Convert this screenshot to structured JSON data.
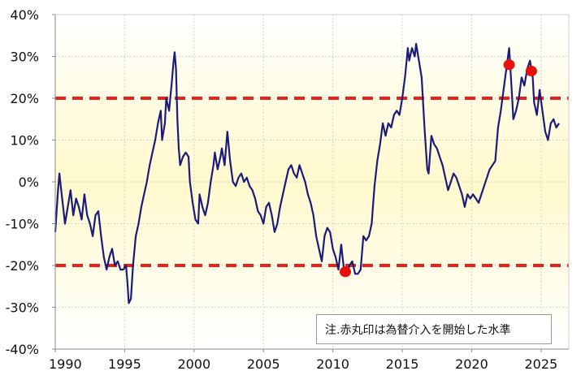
{
  "chart_data": {
    "type": "line",
    "title": "",
    "xlabel": "",
    "ylabel": "",
    "xlim": [
      1990,
      2027
    ],
    "ylim": [
      -40,
      40
    ],
    "x_ticks": [
      1990,
      1995,
      2000,
      2005,
      2010,
      2015,
      2020,
      2025
    ],
    "x_tick_labels": [
      "1990",
      "1995",
      "2000",
      "2005",
      "2010",
      "2015",
      "2020",
      "2025"
    ],
    "y_ticks": [
      40,
      30,
      20,
      10,
      0,
      -10,
      -20,
      -30,
      -40
    ],
    "y_tick_labels": [
      "40%",
      "30%",
      "20%",
      "10%",
      "0%",
      "-10%",
      "-20%",
      "-30%",
      "-40%"
    ],
    "grid": true,
    "reference_lines": [
      {
        "y": 20,
        "style": "dashed",
        "color": "#e8211c"
      },
      {
        "y": -20,
        "style": "dashed",
        "color": "#e8211c"
      }
    ],
    "series": [
      {
        "color": "#1b1b7a",
        "points": [
          [
            1990.0,
            -12
          ],
          [
            1990.2,
            -2
          ],
          [
            1990.3,
            2
          ],
          [
            1990.5,
            -4
          ],
          [
            1990.7,
            -10
          ],
          [
            1990.9,
            -6
          ],
          [
            1991.1,
            -2
          ],
          [
            1991.3,
            -8
          ],
          [
            1991.5,
            -4
          ],
          [
            1991.7,
            -6
          ],
          [
            1991.9,
            -9
          ],
          [
            1992.1,
            -3
          ],
          [
            1992.3,
            -8
          ],
          [
            1992.5,
            -10
          ],
          [
            1992.7,
            -13
          ],
          [
            1992.9,
            -8
          ],
          [
            1993.1,
            -7
          ],
          [
            1993.3,
            -13
          ],
          [
            1993.5,
            -18
          ],
          [
            1993.7,
            -21
          ],
          [
            1993.9,
            -18
          ],
          [
            1994.1,
            -16
          ],
          [
            1994.3,
            -20
          ],
          [
            1994.5,
            -19
          ],
          [
            1994.7,
            -21
          ],
          [
            1994.9,
            -21
          ],
          [
            1995.1,
            -20
          ],
          [
            1995.2,
            -24
          ],
          [
            1995.3,
            -29
          ],
          [
            1995.45,
            -28
          ],
          [
            1995.6,
            -20
          ],
          [
            1995.8,
            -13
          ],
          [
            1996.0,
            -10
          ],
          [
            1996.2,
            -6
          ],
          [
            1996.4,
            -3
          ],
          [
            1996.6,
            0
          ],
          [
            1996.8,
            4
          ],
          [
            1997.0,
            7
          ],
          [
            1997.2,
            10
          ],
          [
            1997.4,
            14
          ],
          [
            1997.6,
            17
          ],
          [
            1997.7,
            10
          ],
          [
            1997.9,
            14
          ],
          [
            1998.0,
            20
          ],
          [
            1998.2,
            17
          ],
          [
            1998.4,
            24
          ],
          [
            1998.5,
            28
          ],
          [
            1998.6,
            31
          ],
          [
            1998.7,
            27
          ],
          [
            1998.8,
            15
          ],
          [
            1998.9,
            8
          ],
          [
            1999.0,
            4
          ],
          [
            1999.2,
            6
          ],
          [
            1999.4,
            7
          ],
          [
            1999.6,
            6
          ],
          [
            1999.7,
            0
          ],
          [
            1999.9,
            -5
          ],
          [
            2000.1,
            -9
          ],
          [
            2000.3,
            -10
          ],
          [
            2000.4,
            -3
          ],
          [
            2000.6,
            -6
          ],
          [
            2000.8,
            -8
          ],
          [
            2001.0,
            -5
          ],
          [
            2001.2,
            0
          ],
          [
            2001.4,
            4
          ],
          [
            2001.5,
            7
          ],
          [
            2001.7,
            3
          ],
          [
            2001.9,
            6
          ],
          [
            2002.0,
            8
          ],
          [
            2002.2,
            4
          ],
          [
            2002.4,
            12
          ],
          [
            2002.6,
            5
          ],
          [
            2002.8,
            0
          ],
          [
            2003.0,
            -1
          ],
          [
            2003.2,
            1
          ],
          [
            2003.4,
            2
          ],
          [
            2003.6,
            0
          ],
          [
            2003.8,
            1
          ],
          [
            2004.0,
            -1
          ],
          [
            2004.2,
            -2
          ],
          [
            2004.4,
            -4
          ],
          [
            2004.6,
            -7
          ],
          [
            2004.8,
            -8
          ],
          [
            2005.0,
            -10
          ],
          [
            2005.2,
            -6
          ],
          [
            2005.4,
            -5
          ],
          [
            2005.6,
            -8
          ],
          [
            2005.8,
            -12
          ],
          [
            2006.0,
            -10
          ],
          [
            2006.2,
            -6
          ],
          [
            2006.4,
            -3
          ],
          [
            2006.6,
            0
          ],
          [
            2006.8,
            3
          ],
          [
            2007.0,
            4
          ],
          [
            2007.2,
            2
          ],
          [
            2007.4,
            1
          ],
          [
            2007.6,
            4
          ],
          [
            2007.8,
            2
          ],
          [
            2008.0,
            0
          ],
          [
            2008.2,
            -3
          ],
          [
            2008.4,
            -5
          ],
          [
            2008.6,
            -8
          ],
          [
            2008.8,
            -13
          ],
          [
            2009.0,
            -16
          ],
          [
            2009.2,
            -19
          ],
          [
            2009.4,
            -13
          ],
          [
            2009.6,
            -11
          ],
          [
            2009.8,
            -12
          ],
          [
            2010.0,
            -16
          ],
          [
            2010.2,
            -18
          ],
          [
            2010.4,
            -21
          ],
          [
            2010.6,
            -15
          ],
          [
            2010.8,
            -21
          ],
          [
            2011.0,
            -22
          ],
          [
            2011.2,
            -20
          ],
          [
            2011.4,
            -19
          ],
          [
            2011.6,
            -22
          ],
          [
            2011.8,
            -22
          ],
          [
            2012.0,
            -21
          ],
          [
            2012.2,
            -13
          ],
          [
            2012.4,
            -14
          ],
          [
            2012.6,
            -13
          ],
          [
            2012.8,
            -10
          ],
          [
            2013.0,
            -1
          ],
          [
            2013.2,
            5
          ],
          [
            2013.4,
            9
          ],
          [
            2013.6,
            14
          ],
          [
            2013.8,
            11
          ],
          [
            2014.0,
            14
          ],
          [
            2014.2,
            13
          ],
          [
            2014.4,
            16
          ],
          [
            2014.6,
            17
          ],
          [
            2014.8,
            16
          ],
          [
            2015.0,
            20
          ],
          [
            2015.2,
            25
          ],
          [
            2015.4,
            32
          ],
          [
            2015.5,
            29
          ],
          [
            2015.7,
            32
          ],
          [
            2015.9,
            30
          ],
          [
            2016.0,
            33
          ],
          [
            2016.2,
            29
          ],
          [
            2016.4,
            25
          ],
          [
            2016.6,
            13
          ],
          [
            2016.8,
            3
          ],
          [
            2016.9,
            2
          ],
          [
            2017.1,
            11
          ],
          [
            2017.3,
            9
          ],
          [
            2017.5,
            8
          ],
          [
            2017.7,
            6
          ],
          [
            2017.9,
            4
          ],
          [
            2018.1,
            1
          ],
          [
            2018.3,
            -2
          ],
          [
            2018.5,
            0
          ],
          [
            2018.7,
            2
          ],
          [
            2018.9,
            1
          ],
          [
            2019.1,
            -1
          ],
          [
            2019.3,
            -3
          ],
          [
            2019.5,
            -6
          ],
          [
            2019.7,
            -3
          ],
          [
            2019.9,
            -4
          ],
          [
            2020.1,
            -3
          ],
          [
            2020.3,
            -4
          ],
          [
            2020.5,
            -5
          ],
          [
            2020.7,
            -3
          ],
          [
            2020.9,
            -1
          ],
          [
            2021.1,
            1
          ],
          [
            2021.3,
            3
          ],
          [
            2021.5,
            4
          ],
          [
            2021.7,
            5
          ],
          [
            2021.9,
            13
          ],
          [
            2022.1,
            17
          ],
          [
            2022.3,
            22
          ],
          [
            2022.5,
            27
          ],
          [
            2022.7,
            32
          ],
          [
            2022.9,
            21
          ],
          [
            2023.0,
            15
          ],
          [
            2023.2,
            17
          ],
          [
            2023.4,
            20
          ],
          [
            2023.6,
            25
          ],
          [
            2023.8,
            23
          ],
          [
            2024.0,
            27
          ],
          [
            2024.2,
            29
          ],
          [
            2024.4,
            25
          ],
          [
            2024.5,
            19
          ],
          [
            2024.7,
            16
          ],
          [
            2024.9,
            22
          ],
          [
            2025.1,
            17
          ],
          [
            2025.3,
            12
          ],
          [
            2025.5,
            10
          ],
          [
            2025.7,
            14
          ],
          [
            2025.9,
            15
          ],
          [
            2026.1,
            13
          ],
          [
            2026.3,
            14
          ]
        ]
      }
    ],
    "markers": [
      {
        "x": 2010.9,
        "y": -21.5,
        "color": "#e8100c"
      },
      {
        "x": 2022.7,
        "y": 28,
        "color": "#e8100c"
      },
      {
        "x": 2024.3,
        "y": 26.5,
        "color": "#e8100c"
      }
    ],
    "background_gradient": [
      "#ffffff",
      "#fff9cc"
    ],
    "annotation": "注.赤丸印は為替介入を開始した水準"
  }
}
